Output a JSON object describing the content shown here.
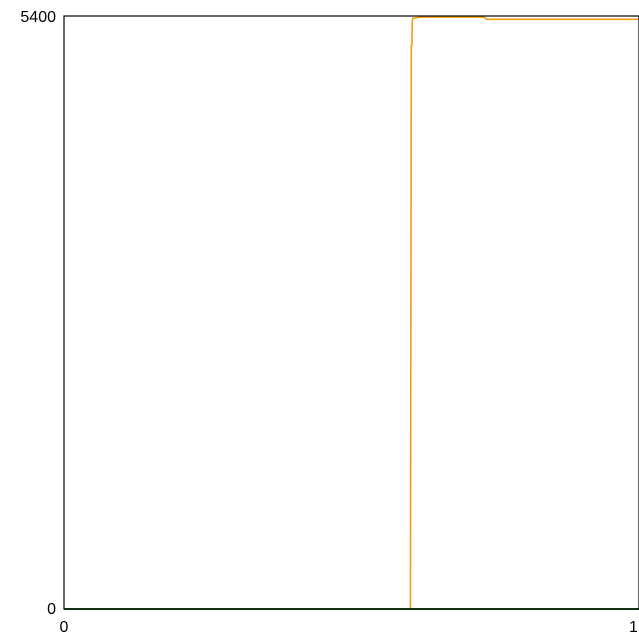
{
  "chart_data": {
    "type": "line",
    "title": "",
    "xlabel": "",
    "ylabel": "",
    "xlim": [
      0,
      1
    ],
    "ylim": [
      0,
      5400
    ],
    "x_tick_labels": [
      "0",
      "1"
    ],
    "y_tick_labels": [
      "0",
      "5400"
    ],
    "y_zero_label_color": "#2e7d32",
    "grid": false,
    "legend": "none",
    "series": [
      {
        "color": "#f39c12",
        "x": [
          0.0,
          0.6,
          0.6025,
          0.604,
          0.605,
          0.6055,
          0.606,
          0.607,
          0.622,
          0.625,
          0.65,
          0.68,
          0.7,
          0.73,
          0.735,
          0.75,
          0.8,
          0.85,
          0.9,
          0.95,
          1.0
        ],
        "y": [
          0,
          0,
          0,
          5130,
          5130,
          5310,
          5370,
          5380,
          5390,
          5390,
          5390,
          5390,
          5390,
          5390,
          5370,
          5370,
          5370,
          5370,
          5370,
          5370,
          5370
        ]
      },
      {
        "color": "#2e7d32",
        "x": [
          0.0,
          1.0
        ],
        "y": [
          0,
          0
        ]
      }
    ]
  }
}
